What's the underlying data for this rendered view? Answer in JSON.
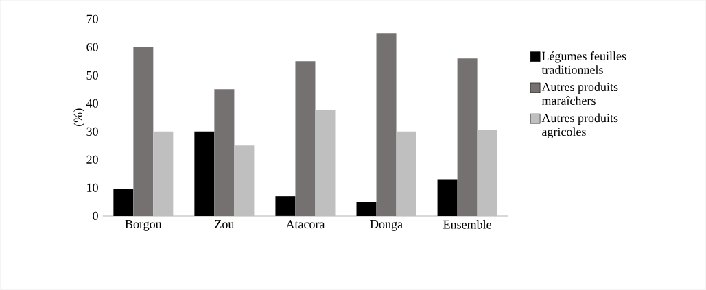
{
  "chart_data": {
    "type": "bar",
    "ylabel": "(%)",
    "categories": [
      "Borgou",
      "Zou",
      "Atacora",
      "Donga",
      "Ensemble"
    ],
    "series": [
      {
        "name": "Légumes feuilles traditionnels",
        "color": "#000000",
        "values": [
          9.5,
          30,
          7,
          5,
          13
        ]
      },
      {
        "name": "Autres produits maraîchers",
        "color": "#767171",
        "values": [
          60,
          45,
          55,
          65,
          56
        ]
      },
      {
        "name": "Autres produits agricoles",
        "color": "#bfbfbf",
        "values": [
          30,
          25,
          37.5,
          30,
          30.5
        ]
      }
    ],
    "ylim": [
      0,
      70
    ],
    "yticks": [
      0,
      10,
      20,
      30,
      40,
      50,
      60,
      70
    ],
    "legend": "right"
  }
}
